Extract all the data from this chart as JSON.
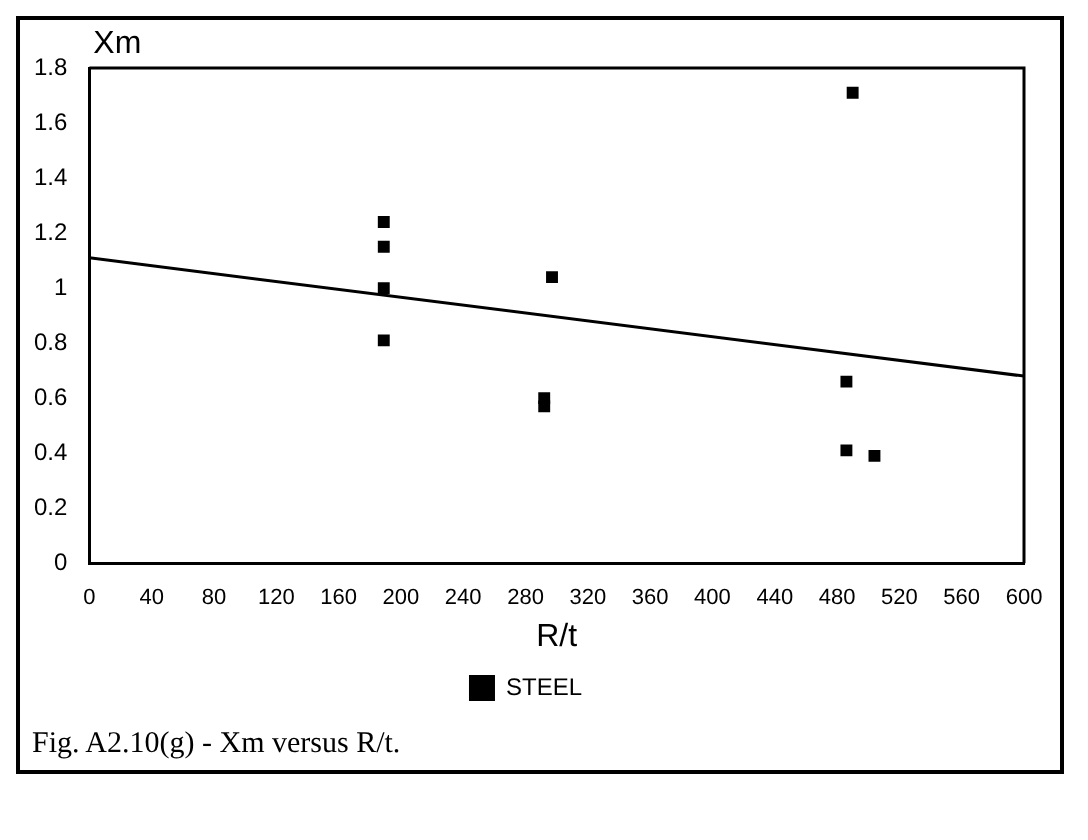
{
  "chart_data": {
    "type": "scatter",
    "xlabel": "R/t",
    "ylabel": "Xm",
    "annotations": [
      "Fig. A2.10(g) - Xm versus R/t."
    ],
    "xlim": [
      0,
      600
    ],
    "xticks": [
      0,
      40,
      80,
      120,
      160,
      200,
      240,
      280,
      320,
      360,
      400,
      440,
      480,
      520,
      560,
      600
    ],
    "ylim": [
      0,
      1.8
    ],
    "yticks": [
      0,
      0.2,
      0.4,
      0.6,
      0.8,
      {
        "value": 1,
        "label": "1"
      },
      1.2,
      1.4,
      1.6,
      1.8
    ],
    "legend": "bottom",
    "marker": "square",
    "grid": false,
    "series": [
      {
        "name": "STEEL",
        "color": "#000000",
        "x": [
          189,
          189,
          189,
          189,
          297,
          292,
          292,
          490,
          486,
          486,
          504
        ],
        "values": [
          1.24,
          1.15,
          1.0,
          0.81,
          1.04,
          0.6,
          0.57,
          1.71,
          0.66,
          0.41,
          0.39
        ]
      },
      {
        "type": "line",
        "color": "#000000",
        "x": [
          0,
          600
        ],
        "values": [
          1.11,
          0.68
        ],
        "marker": "none"
      }
    ]
  }
}
